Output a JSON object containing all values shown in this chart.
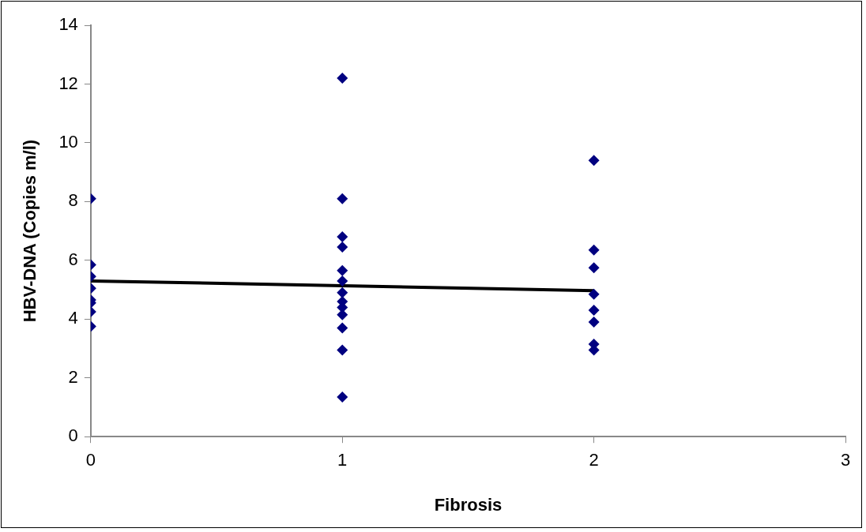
{
  "chart_data": {
    "type": "scatter",
    "xlabel": "Fibrosis",
    "ylabel": "HBV-DNA (Copies m/l)",
    "xlim": [
      0,
      3
    ],
    "xticks": [
      0,
      1,
      2,
      3
    ],
    "ylim": [
      0,
      14
    ],
    "yticks": [
      0,
      2,
      4,
      6,
      8,
      10,
      12,
      14
    ],
    "grid": false,
    "legend": false,
    "marker": "diamond",
    "series": [
      {
        "color": "#000080",
        "x": [
          0,
          0,
          0,
          0,
          0,
          0,
          0,
          0,
          1,
          1,
          1,
          1,
          1,
          1,
          1,
          1,
          1,
          1,
          1,
          1,
          1,
          2,
          2,
          2,
          2,
          2,
          2,
          2,
          2
        ],
        "values": [
          8.1,
          5.85,
          5.45,
          5.05,
          4.65,
          4.55,
          4.25,
          3.75,
          12.2,
          8.1,
          6.8,
          6.45,
          5.65,
          5.3,
          4.9,
          4.6,
          4.4,
          4.15,
          3.7,
          2.95,
          1.35,
          9.4,
          6.35,
          5.75,
          4.85,
          4.3,
          3.9,
          3.15,
          2.95
        ]
      },
      {
        "type": "line",
        "color": "#000000",
        "x": [
          0,
          2
        ],
        "values": [
          5.3,
          4.97
        ],
        "marker": "none"
      }
    ]
  }
}
